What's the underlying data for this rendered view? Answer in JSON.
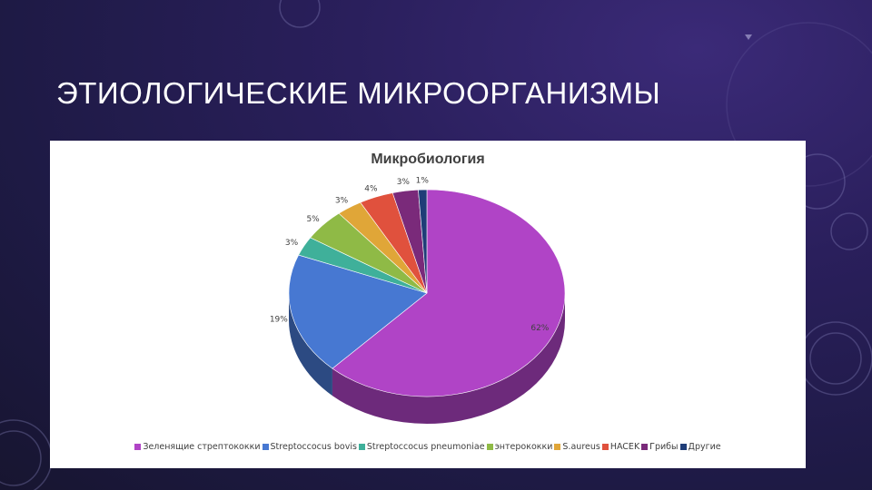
{
  "slide": {
    "title": "ЭТИОЛОГИЧЕСКИЕ МИКРООРГАНИЗМЫ"
  },
  "colors": {
    "background": "#221c4e",
    "panel": "#ffffff"
  },
  "chart_data": {
    "type": "pie",
    "title": "Микробиология",
    "legend_position": "bottom",
    "three_d": true,
    "slices": [
      {
        "name": "Зеленящие стрептококки",
        "value": 62,
        "label": "62%",
        "color": "#b044c6"
      },
      {
        "name": "Streptoccocus bovis",
        "value": 19,
        "label": "19%",
        "color": "#4778d2"
      },
      {
        "name": "Streptoccocus pneumoniae",
        "value": 3,
        "label": "3%",
        "color": "#3fb09a"
      },
      {
        "name": "энтерококки",
        "value": 5,
        "label": "5%",
        "color": "#8fba46"
      },
      {
        "name": "S.aureus",
        "value": 3,
        "label": "3%",
        "color": "#e0a638"
      },
      {
        "name": "HACEK",
        "value": 4,
        "label": "4%",
        "color": "#e0513d"
      },
      {
        "name": "Грибы",
        "value": 3,
        "label": "3%",
        "color": "#7a2a7a"
      },
      {
        "name": "Другие",
        "value": 1,
        "label": "1%",
        "color": "#1f3d78"
      }
    ]
  }
}
